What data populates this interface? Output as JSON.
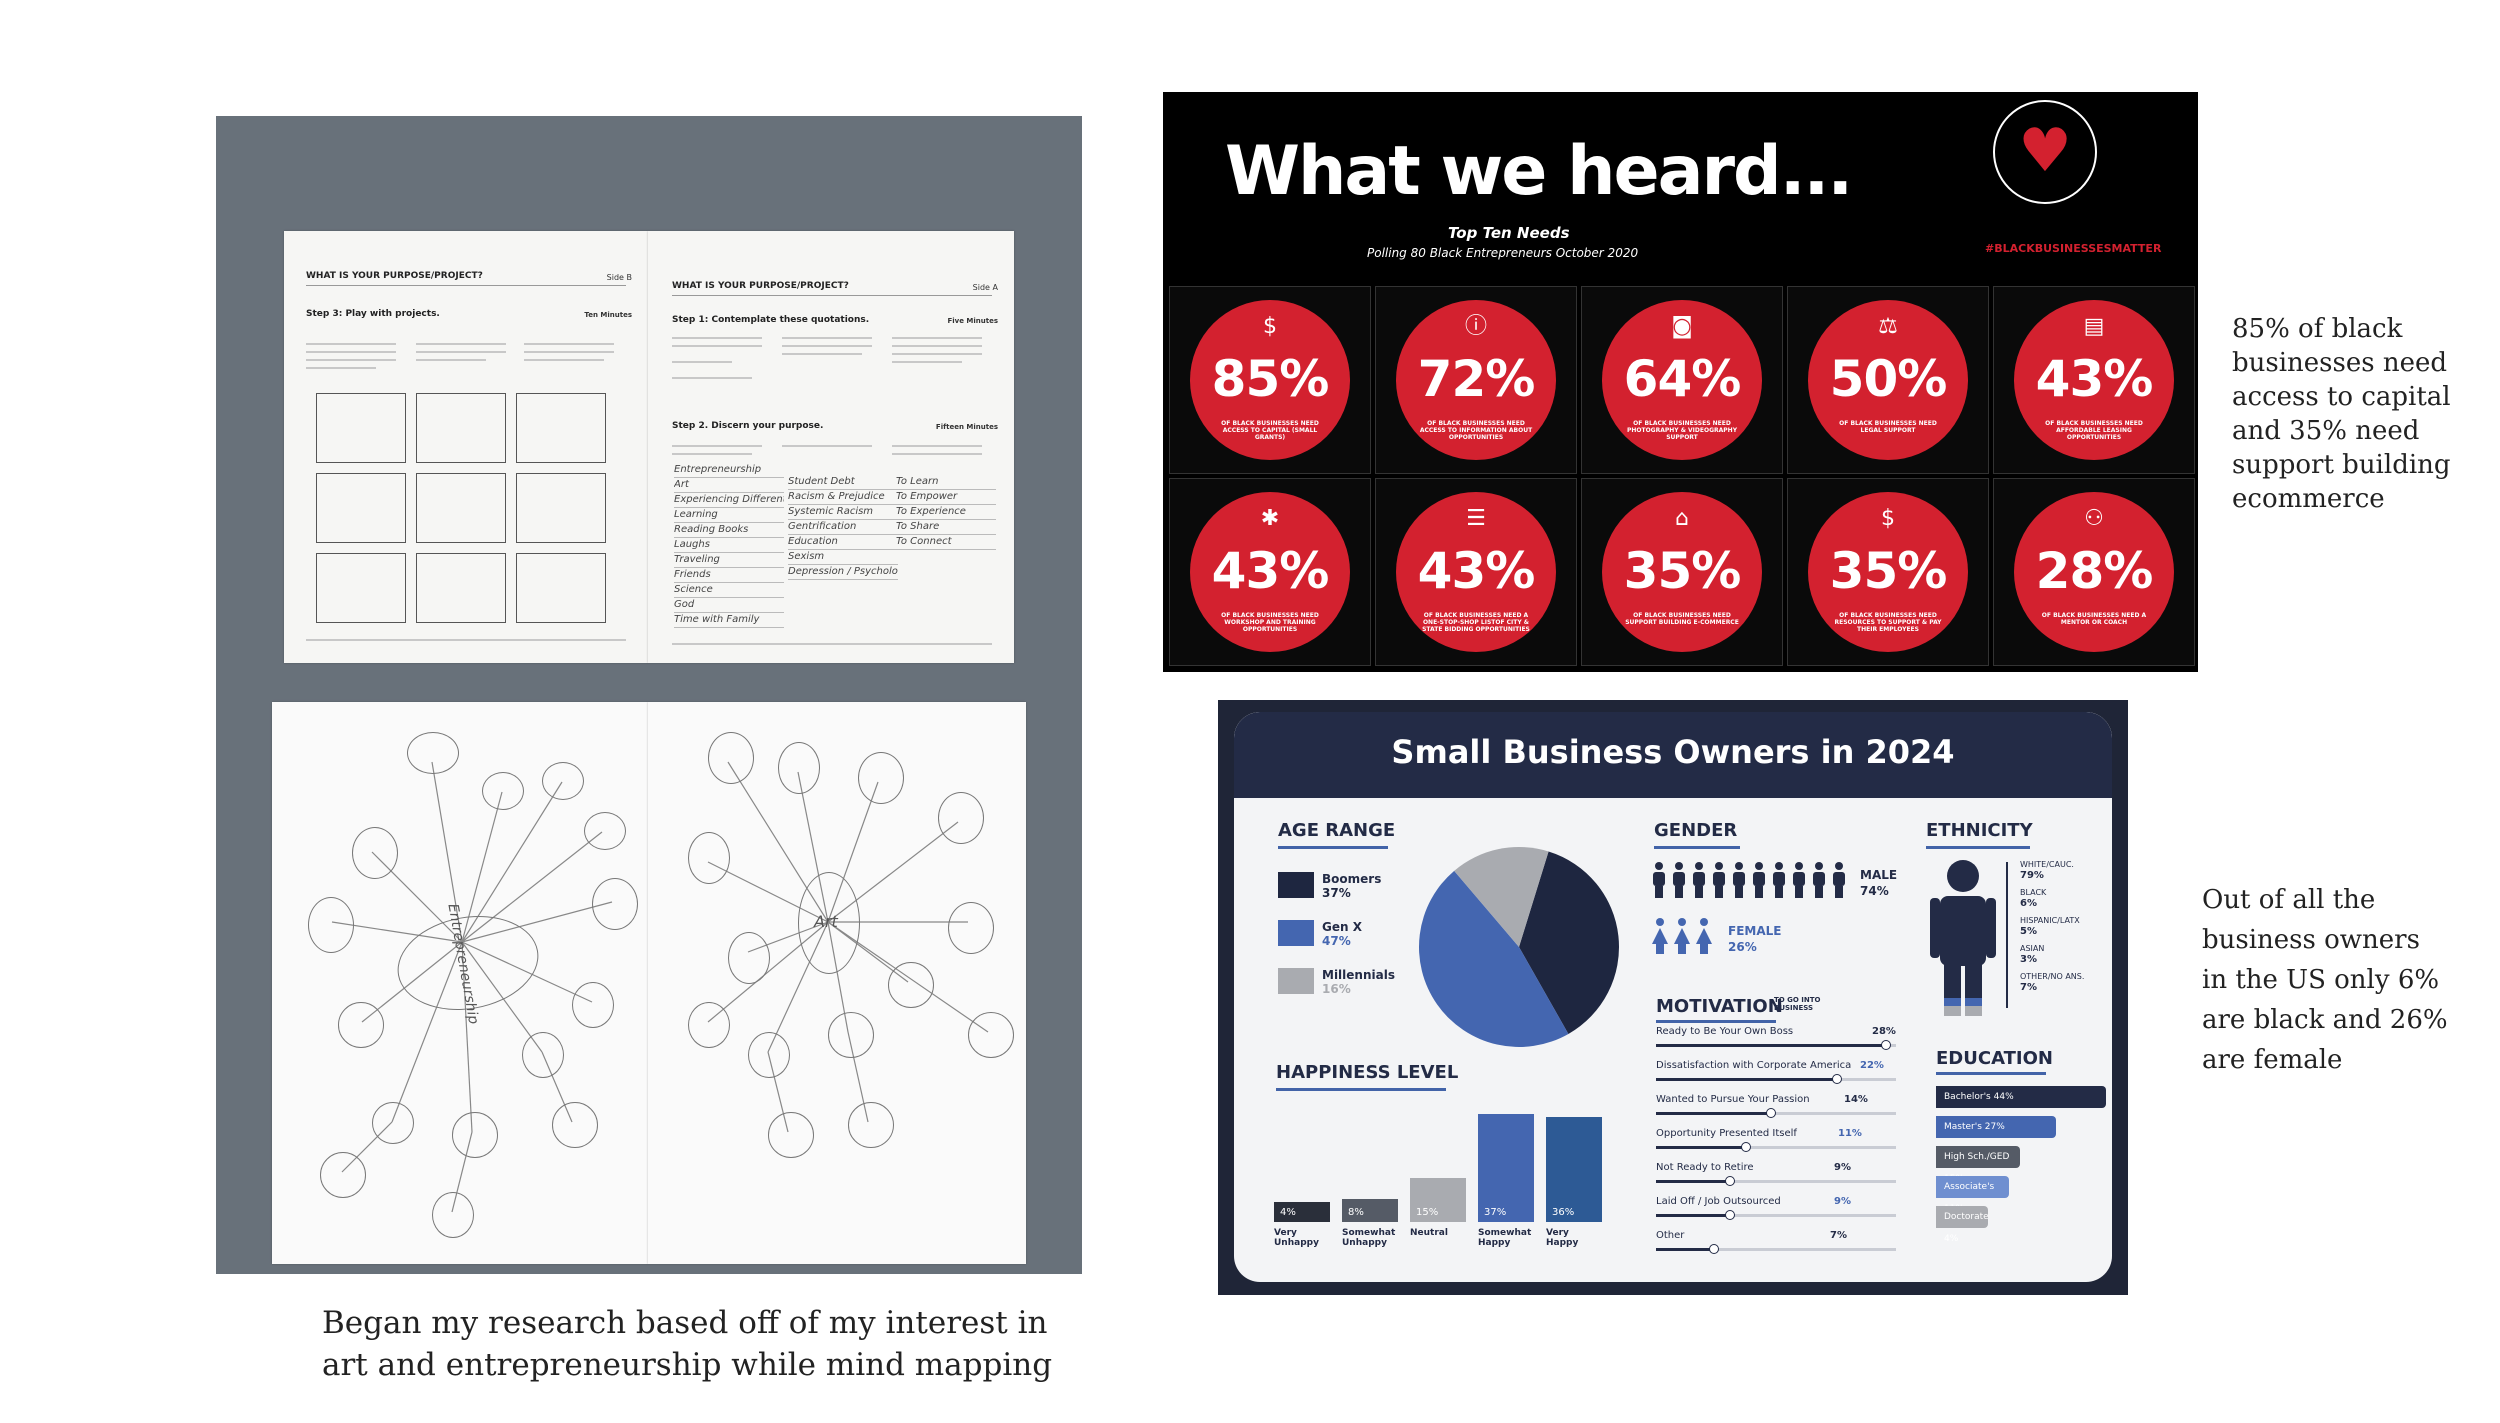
{
  "captions": {
    "left": [
      "Began my research based off of my interest in",
      "art and entrepreneurship while mind mapping"
    ],
    "top_right": [
      "85% of black",
      "businesses need",
      "access to capital",
      "and 35% need",
      "support building",
      "ecommerce"
    ],
    "bottom_right": [
      "Out of all the",
      "business owners",
      "in the US only 6%",
      "are black and 26%",
      "are female"
    ]
  },
  "worksheet": {
    "left_title": "WHAT IS YOUR PURPOSE/PROJECT?",
    "left_side": "Side B",
    "left_step": "Step 3: Play with projects.",
    "left_time": "Ten Minutes",
    "right_title": "WHAT IS YOUR PURPOSE/PROJECT?",
    "right_side": "Side A",
    "right_step1": "Step 1: Contemplate these quotations.",
    "right_time1": "Five Minutes",
    "right_step2": "Step 2. Discern your purpose.",
    "right_time2": "Fifteen Minutes",
    "list_left": [
      "Entrepreneurship",
      "Art",
      "Experiencing Different Cultures",
      "Learning",
      "Reading Books",
      "Laughs",
      "Traveling",
      "Friends",
      "Science",
      "God",
      "Time with Family"
    ],
    "list_mid": [
      "Student Debt",
      "Racism & Prejudice",
      "Systemic Racism",
      "Gentrification",
      "Education",
      "Sexism",
      "Depression / Psychological"
    ],
    "list_right": [
      "To Learn",
      "To Empower",
      "To Experience",
      "To Share",
      "To Connect"
    ],
    "mindmap_center_left": "Entrepreneurship",
    "mindmap_center_right": "Art"
  },
  "poster": {
    "title": "What we heard...",
    "subtitle": "Top Ten Needs",
    "polling": "Polling 80 Black Entrepreneurs October 2020",
    "brand": "#BLACKBUSINESSESMATTER",
    "needs": [
      {
        "pct": "85%",
        "label": "OF BLACK BUSINESSES NEED ACCESS TO CAPITAL (SMALL GRANTS)",
        "icon": "money-icon",
        "glyph": "$"
      },
      {
        "pct": "72%",
        "label": "OF BLACK BUSINESSES NEED ACCESS TO INFORMATION ABOUT OPPORTUNITIES",
        "icon": "info-icon",
        "glyph": "ⓘ"
      },
      {
        "pct": "64%",
        "label": "OF BLACK BUSINESSES NEED PHOTOGRAPHY & VIDEOGRAPHY SUPPORT",
        "icon": "camera-icon",
        "glyph": "◙"
      },
      {
        "pct": "50%",
        "label": "OF BLACK BUSINESSES NEED LEGAL SUPPORT",
        "icon": "scales-icon",
        "glyph": "⚖"
      },
      {
        "pct": "43%",
        "label": "OF BLACK BUSINESSES NEED AFFORDABLE LEASING OPPORTUNITIES",
        "icon": "sign-icon",
        "glyph": "▤"
      },
      {
        "pct": "43%",
        "label": "OF BLACK BUSINESSES NEED WORKSHOP AND TRAINING OPPORTUNITIES",
        "icon": "lightbulb-icon",
        "glyph": "✱"
      },
      {
        "pct": "43%",
        "label": "OF BLACK BUSINESSES NEED A ONE-STOP-SHOP LISTOF CITY & STATE BIDDING OPPORTUNITIES",
        "icon": "list-icon",
        "glyph": "☰"
      },
      {
        "pct": "35%",
        "label": "OF BLACK BUSINESSES NEED SUPPORT BUILDING E-COMMERCE",
        "icon": "store-icon",
        "glyph": "⌂"
      },
      {
        "pct": "35%",
        "label": "OF BLACK BUSINESSES NEED RESOURCES TO SUPPORT & PAY THEIR EMPLOYEES",
        "icon": "dollar-icon",
        "glyph": "$"
      },
      {
        "pct": "28%",
        "label": "OF BLACK BUSINESSES NEED A MENTOR OR COACH",
        "icon": "mentor-icon",
        "glyph": "⚇"
      }
    ]
  },
  "infographic": {
    "title": "Small Business Owners in 2024",
    "age": {
      "heading": "AGE RANGE",
      "items": [
        {
          "name": "Boomers",
          "value": "37%",
          "pct": 37,
          "color": "#1e2640"
        },
        {
          "name": "Gen X",
          "value": "47%",
          "pct": 47,
          "color": "#4466b0"
        },
        {
          "name": "Millennials",
          "value": "16%",
          "pct": 16,
          "color": "#a9abb0"
        }
      ]
    },
    "gender": {
      "heading": "GENDER",
      "male_label": "MALE",
      "male_value": "74%",
      "female_label": "FEMALE",
      "female_value": "26%"
    },
    "ethnicity": {
      "heading": "ETHNICITY",
      "items": [
        {
          "name": "WHITE/CAUC.",
          "value": "79%"
        },
        {
          "name": "BLACK",
          "value": "6%"
        },
        {
          "name": "HISPANIC/LATX",
          "value": "5%"
        },
        {
          "name": "ASIAN",
          "value": "3%"
        },
        {
          "name": "OTHER/NO ANS.",
          "value": "7%"
        }
      ]
    },
    "motivation": {
      "heading": "MOTIVATION",
      "sub": "TO GO INTO BUSINESS",
      "items": [
        {
          "name": "Ready to Be Your Own Boss",
          "value": "28%",
          "pct": 28
        },
        {
          "name": "Dissatisfaction with Corporate America",
          "value": "22%",
          "pct": 22
        },
        {
          "name": "Wanted to Pursue Your Passion",
          "value": "14%",
          "pct": 14
        },
        {
          "name": "Opportunity Presented Itself",
          "value": "11%",
          "pct": 11
        },
        {
          "name": "Not Ready to Retire",
          "value": "9%",
          "pct": 9
        },
        {
          "name": "Laid Off / Job Outsourced",
          "value": "9%",
          "pct": 9
        },
        {
          "name": "Other",
          "value": "7%",
          "pct": 7
        }
      ]
    },
    "education": {
      "heading": "EDUCATION",
      "items": [
        {
          "name": "Bachelor's",
          "value": "44%",
          "pct": 44,
          "color": "#232b46"
        },
        {
          "name": "Master's",
          "value": "27%",
          "pct": 27,
          "color": "#4466b0"
        },
        {
          "name": "High Sch./GED",
          "value": "15%",
          "pct": 15,
          "color": "#555b66"
        },
        {
          "name": "Associate's",
          "value": "11%",
          "pct": 11,
          "color": "#6f8fd0"
        },
        {
          "name": "Doctorate",
          "value": "4%",
          "pct": 4,
          "color": "#a9abb0"
        }
      ]
    },
    "happiness": {
      "heading": "HAPPINESS LEVEL",
      "items": [
        {
          "name": "Very Unhappy",
          "value": "4%",
          "pct": 4,
          "color": "#2a2f3a"
        },
        {
          "name": "Somewhat Unhappy",
          "value": "8%",
          "pct": 8,
          "color": "#555b66"
        },
        {
          "name": "Neutral",
          "value": "15%",
          "pct": 15,
          "color": "#a9abb0"
        },
        {
          "name": "Somewhat Happy",
          "value": "37%",
          "pct": 37,
          "color": "#4466b0"
        },
        {
          "name": "Very Happy",
          "value": "36%",
          "pct": 36,
          "color": "#2d5a95"
        }
      ]
    }
  }
}
